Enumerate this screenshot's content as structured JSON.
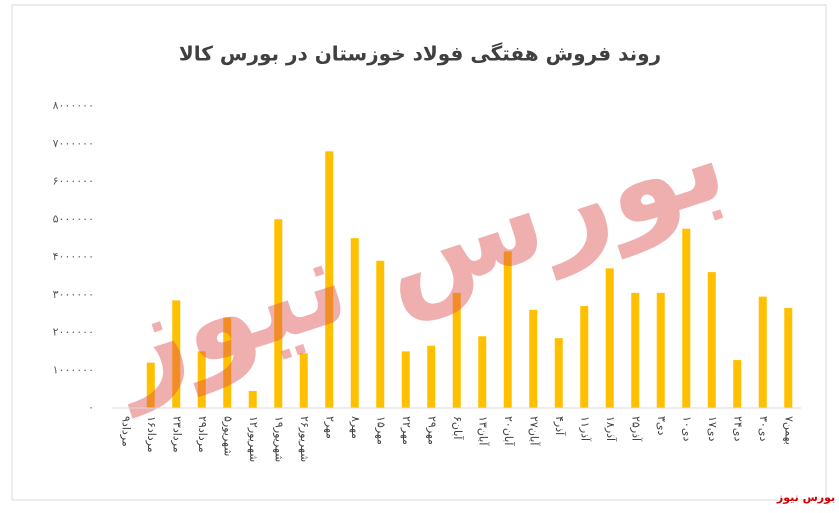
{
  "chart_data": {
    "type": "bar",
    "title": "روند فروش هفتگی فولاد خوزستان در بورس کالا",
    "watermark": "بورس نیوز",
    "source": "بورس نیوز",
    "categories": [
      "۹مرداد",
      "۱۶مرداد",
      "۲۳مرداد",
      "۲۹مرداد",
      "۵شهریور",
      "۱۲شهریور",
      "۱۹شهریور",
      "۲۶شهریور",
      "۲مهر",
      "۸مهر",
      "۱۵مهر",
      "۲۲مهر",
      "۲۹مهر",
      "۶آبان",
      "۱۳آبان",
      "۲۰آبان",
      "۲۷آبان",
      "۴آذر",
      "۱۱آذر",
      "۱۸آذر",
      "۲۵آذر",
      "۳دی",
      "۱۰دی",
      "۱۷دی",
      "۲۴دی",
      "۳۰دی",
      "۷بهمن"
    ],
    "values": [
      0,
      1200000,
      2850000,
      1500000,
      2400000,
      450000,
      5000000,
      1450000,
      6800000,
      4500000,
      3900000,
      1500000,
      1650000,
      3050000,
      1900000,
      4150000,
      2600000,
      1850000,
      2700000,
      3700000,
      3050000,
      3050000,
      4750000,
      3600000,
      1270000,
      2950000,
      2650000
    ],
    "color": "#ffc000",
    "ylim": [
      0,
      8000000
    ],
    "yticks": [
      {
        "value": 0,
        "label": "۰"
      },
      {
        "value": 1000000,
        "label": "۱۰۰۰۰۰۰"
      },
      {
        "value": 2000000,
        "label": "۲۰۰۰۰۰۰"
      },
      {
        "value": 3000000,
        "label": "۳۰۰۰۰۰۰"
      },
      {
        "value": 4000000,
        "label": "۴۰۰۰۰۰۰"
      },
      {
        "value": 5000000,
        "label": "۵۰۰۰۰۰۰"
      },
      {
        "value": 6000000,
        "label": "۶۰۰۰۰۰۰"
      },
      {
        "value": 7000000,
        "label": "۷۰۰۰۰۰۰"
      },
      {
        "value": 8000000,
        "label": "۸۰۰۰۰۰۰"
      }
    ],
    "grid": false
  }
}
